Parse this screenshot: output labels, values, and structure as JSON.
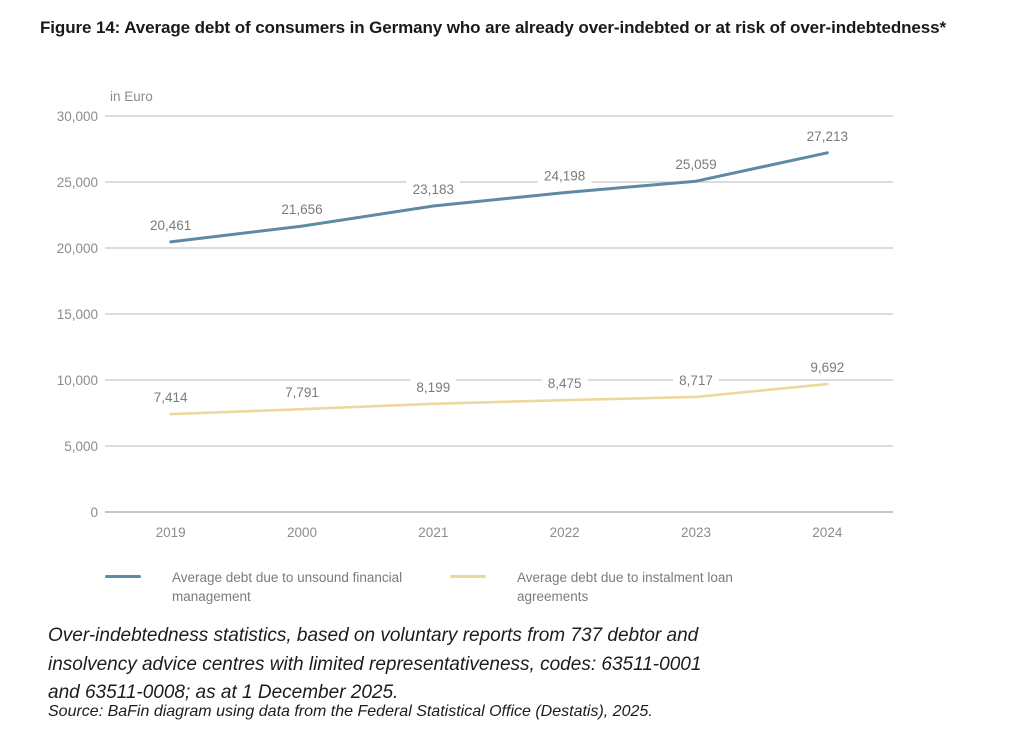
{
  "title": "Figure 14: Average debt of consumers in Germany who are already over-indebted or at risk of over-indebtedness*",
  "chart_data": {
    "type": "line",
    "unit_label": "in Euro",
    "categories": [
      "2019",
      "2000",
      "2021",
      "2022",
      "2023",
      "2024"
    ],
    "series": [
      {
        "name": "Average debt due to unsound financial management",
        "color": "#5e8aa6",
        "values": [
          20461,
          21656,
          23183,
          24198,
          25059,
          27213
        ],
        "labels": [
          "20,461",
          "21,656",
          "23,183",
          "24,198",
          "25,059",
          "27,213"
        ]
      },
      {
        "name": "Average debt due to instalment loan agreements",
        "color": "#ecd79c",
        "values": [
          7414,
          7791,
          8199,
          8475,
          8717,
          9692
        ],
        "labels": [
          "7,414",
          "7,791",
          "8,199",
          "8,475",
          "8,717",
          "9,692"
        ]
      }
    ],
    "ylim": [
      0,
      30000
    ],
    "yticks": [
      {
        "value": 0,
        "label": "0"
      },
      {
        "value": 5000,
        "label": "5,000"
      },
      {
        "value": 10000,
        "label": "10,000"
      },
      {
        "value": 15000,
        "label": "15,000"
      },
      {
        "value": 20000,
        "label": "20,000"
      },
      {
        "value": 25000,
        "label": "25,000"
      },
      {
        "value": 30000,
        "label": "30,000"
      }
    ],
    "grid": "horizontal",
    "legend_position": "bottom"
  },
  "colors": {
    "gridline": "#c6c6c6",
    "baseline": "#a3a3a3",
    "tick_text": "#8c8c8c",
    "data_label_text": "#7b7b7b"
  },
  "footnote": "Over-indebtedness statistics, based on voluntary reports from 737 debtor and insolvency advice centres with limited representativeness, codes: 63511-0001 and 63511-0008; as at 1 December 2025.",
  "source": "Source: BaFin diagram using data from the Federal Statistical Office (Destatis), 2025."
}
